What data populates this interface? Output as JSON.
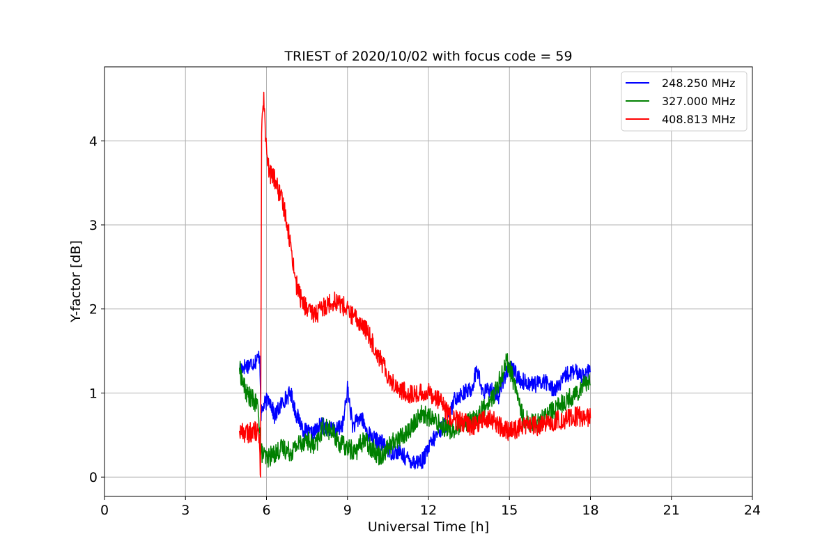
{
  "chart_data": {
    "type": "line",
    "title": "TRIEST of 2020/10/02 with focus code = 59",
    "xlabel": "Universal Time [h]",
    "ylabel": "Y-factor [dB]",
    "xlim": [
      0,
      24
    ],
    "ylim": [
      -0.23,
      4.88
    ],
    "xticks": [
      0,
      3,
      6,
      9,
      12,
      15,
      18,
      21,
      24
    ],
    "yticks": [
      0,
      1,
      2,
      3,
      4
    ],
    "grid": true,
    "legend_position": "top-right",
    "series": [
      {
        "name": "248.250 MHz",
        "color": "#0000ff",
        "x": [
          5.0,
          5.3,
          5.6,
          5.75,
          5.8,
          5.9,
          6.1,
          6.3,
          6.6,
          6.9,
          7.1,
          7.4,
          7.7,
          8.0,
          8.3,
          8.6,
          8.85,
          9.0,
          9.2,
          9.5,
          9.7,
          10.0,
          10.3,
          10.6,
          10.9,
          11.2,
          11.5,
          11.8,
          12.1,
          12.4,
          12.7,
          13.0,
          13.3,
          13.6,
          13.8,
          14.0,
          14.3,
          14.6,
          14.8,
          15.1,
          15.4,
          15.7,
          16.0,
          16.3,
          16.6,
          16.9,
          17.1,
          17.4,
          17.7,
          18.0
        ],
        "y": [
          1.3,
          1.33,
          1.38,
          1.45,
          0.75,
          0.85,
          0.95,
          0.72,
          0.9,
          1.0,
          0.75,
          0.55,
          0.5,
          0.62,
          0.58,
          0.55,
          0.65,
          1.05,
          0.6,
          0.72,
          0.55,
          0.45,
          0.4,
          0.3,
          0.3,
          0.22,
          0.18,
          0.2,
          0.4,
          0.55,
          0.65,
          0.95,
          1.0,
          1.05,
          1.3,
          1.0,
          1.05,
          0.95,
          1.2,
          1.3,
          1.15,
          1.12,
          1.1,
          1.15,
          1.05,
          1.1,
          1.22,
          1.25,
          1.22,
          1.25
        ]
      },
      {
        "name": "327.000 MHz",
        "color": "#008000",
        "x": [
          5.0,
          5.1,
          5.25,
          5.4,
          5.55,
          5.7,
          5.8,
          6.0,
          6.3,
          6.6,
          6.9,
          7.2,
          7.5,
          7.8,
          8.1,
          8.4,
          8.7,
          9.0,
          9.3,
          9.6,
          9.9,
          10.2,
          10.5,
          10.8,
          11.1,
          11.4,
          11.7,
          12.0,
          12.3,
          12.6,
          12.9,
          13.2,
          13.5,
          13.8,
          14.1,
          14.4,
          14.7,
          14.9,
          15.2,
          15.5,
          15.8,
          16.1,
          16.4,
          16.7,
          17.0,
          17.3,
          17.6,
          17.8,
          18.0
        ],
        "y": [
          1.3,
          1.15,
          1.0,
          0.95,
          0.9,
          0.82,
          0.3,
          0.22,
          0.28,
          0.35,
          0.3,
          0.4,
          0.45,
          0.35,
          0.6,
          0.55,
          0.4,
          0.35,
          0.3,
          0.45,
          0.35,
          0.25,
          0.35,
          0.45,
          0.5,
          0.6,
          0.75,
          0.72,
          0.65,
          0.6,
          0.55,
          0.6,
          0.65,
          0.7,
          0.85,
          0.95,
          1.2,
          1.4,
          1.1,
          0.7,
          0.65,
          0.65,
          0.75,
          0.8,
          0.9,
          0.95,
          1.05,
          1.15,
          1.1
        ]
      },
      {
        "name": "408.813 MHz",
        "color": "#ff0000",
        "x": [
          5.0,
          5.3,
          5.6,
          5.72,
          5.78,
          5.82,
          5.9,
          6.0,
          6.1,
          6.3,
          6.5,
          6.7,
          6.9,
          7.1,
          7.3,
          7.6,
          7.9,
          8.2,
          8.5,
          8.8,
          9.1,
          9.4,
          9.7,
          10.0,
          10.3,
          10.6,
          10.9,
          11.2,
          11.5,
          11.8,
          12.1,
          12.4,
          12.7,
          13.0,
          13.3,
          13.6,
          13.9,
          14.2,
          14.5,
          14.8,
          15.1,
          15.4,
          15.7,
          16.0,
          16.3,
          16.6,
          16.9,
          17.2,
          17.5,
          17.8,
          18.0
        ],
        "y": [
          0.55,
          0.52,
          0.55,
          0.5,
          0.0,
          4.2,
          4.55,
          3.85,
          3.62,
          3.55,
          3.35,
          3.15,
          2.75,
          2.3,
          2.1,
          1.95,
          1.95,
          2.05,
          2.1,
          2.05,
          1.95,
          1.85,
          1.75,
          1.55,
          1.35,
          1.15,
          1.05,
          1.0,
          0.98,
          1.0,
          1.0,
          0.92,
          0.75,
          0.68,
          0.65,
          0.6,
          0.65,
          0.7,
          0.65,
          0.55,
          0.55,
          0.6,
          0.62,
          0.6,
          0.62,
          0.65,
          0.68,
          0.7,
          0.72,
          0.72,
          0.7
        ]
      }
    ]
  }
}
